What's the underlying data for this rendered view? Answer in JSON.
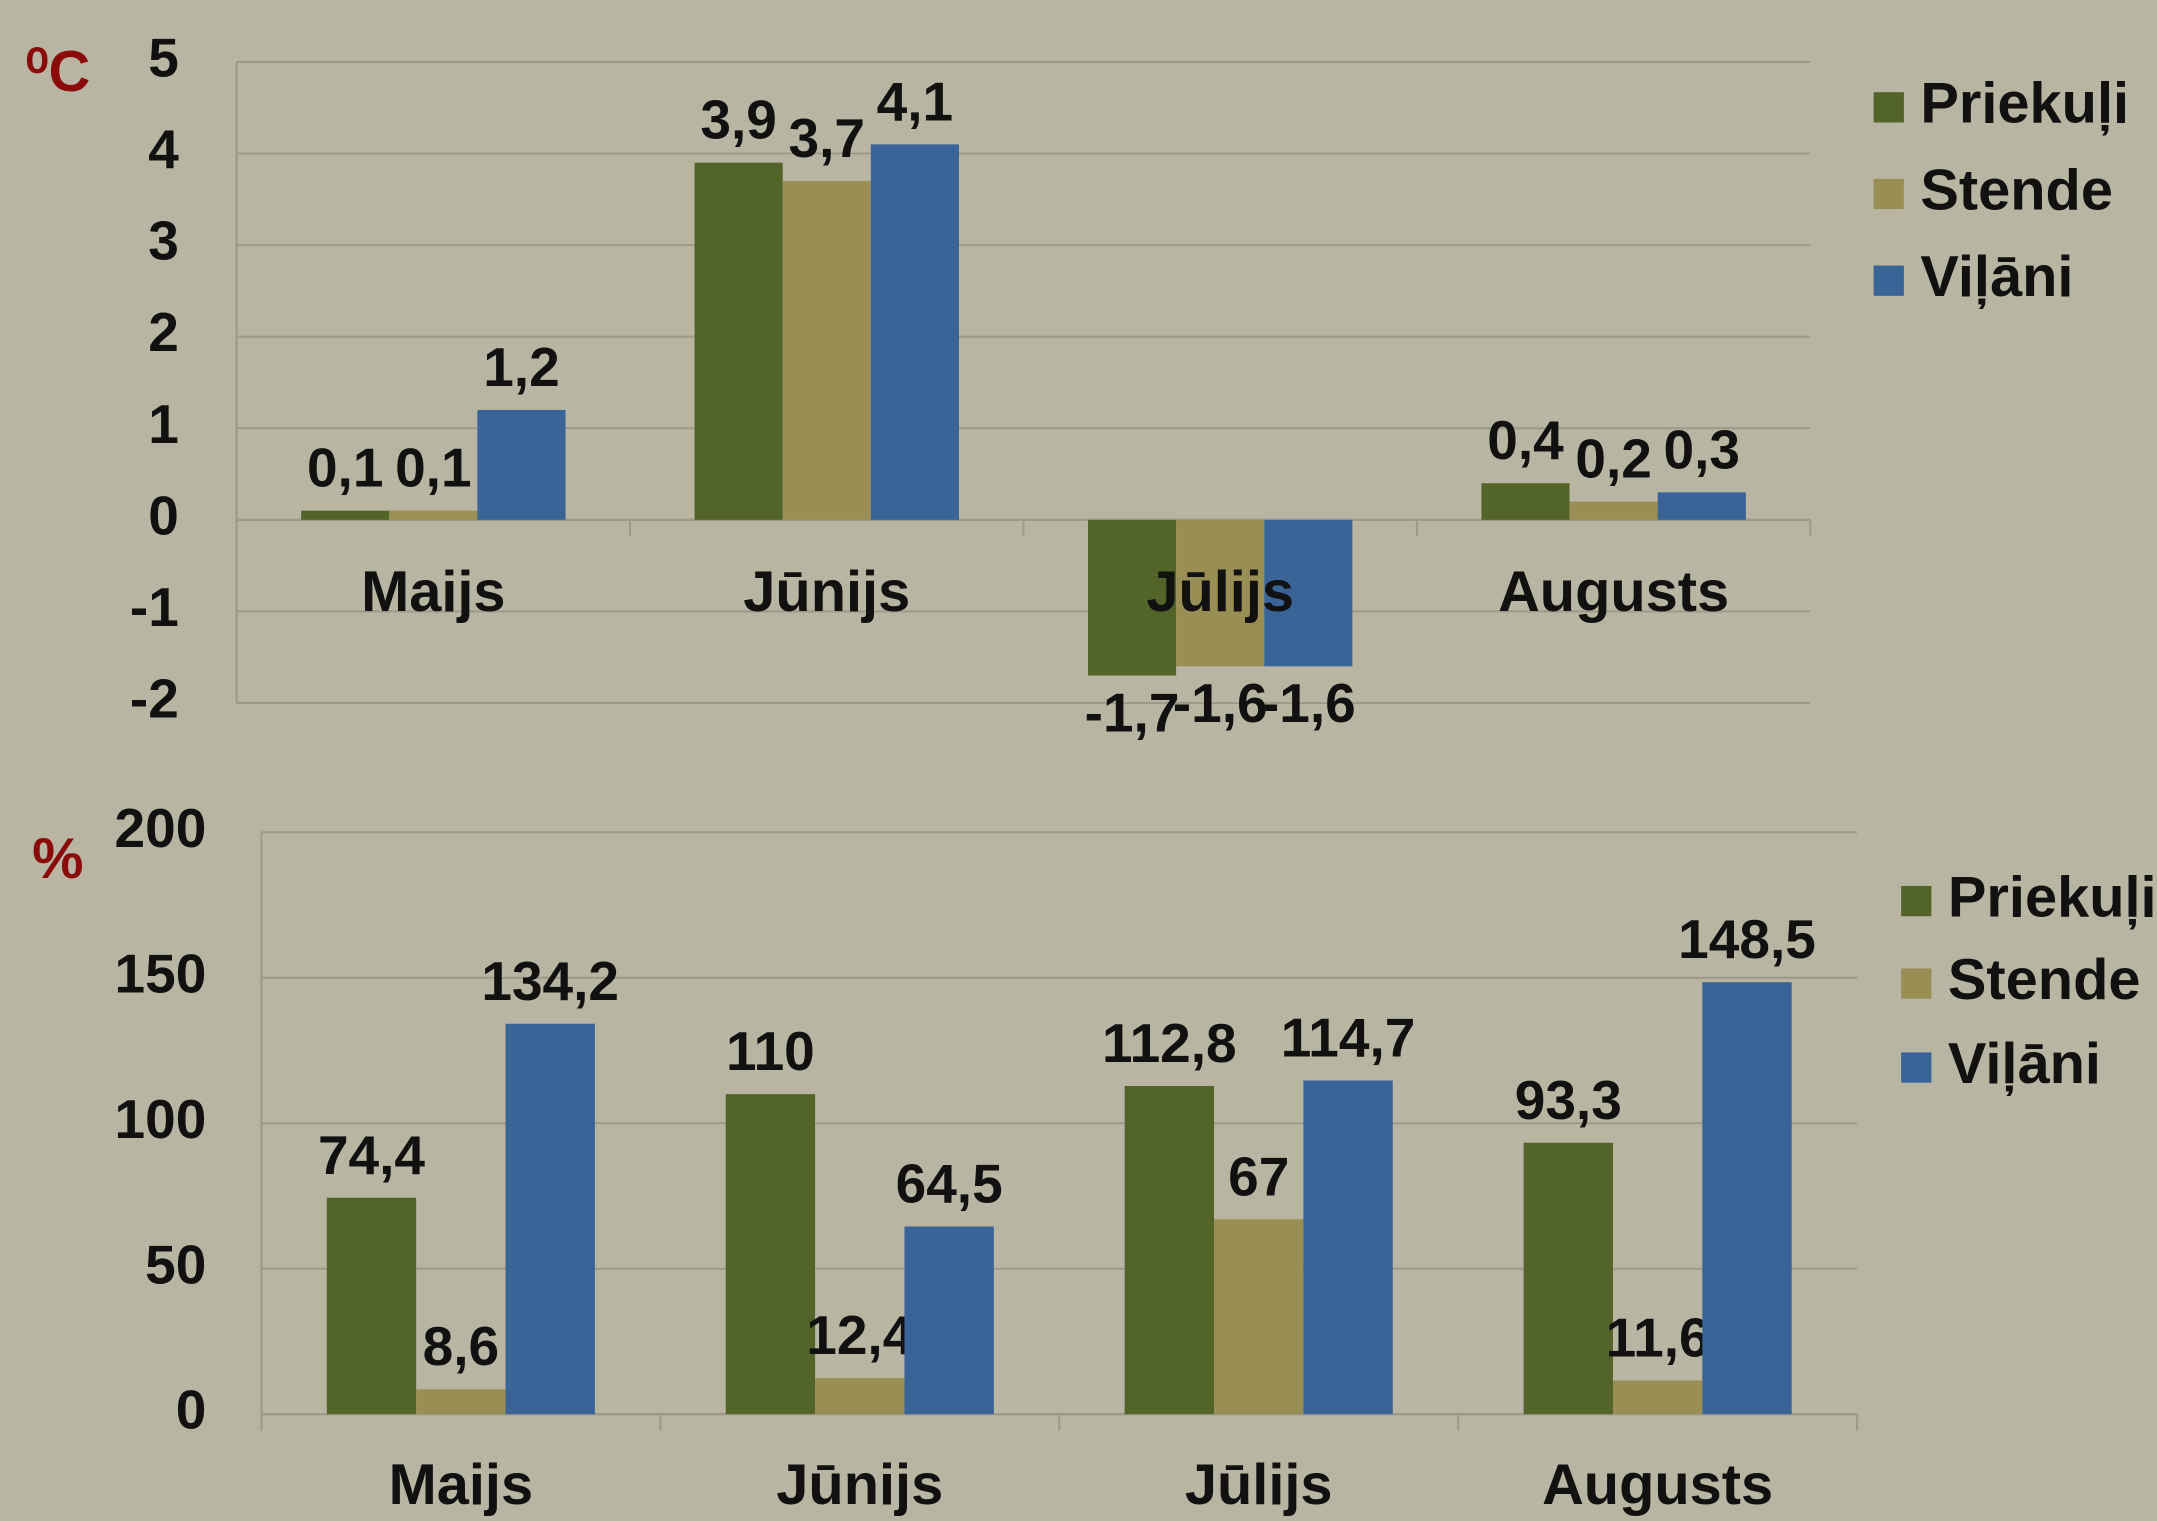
{
  "chart_data": [
    {
      "type": "bar",
      "y_label": "⁰C",
      "categories": [
        "Maijs",
        "Jūnijs",
        "Jūlijs",
        "Augusts"
      ],
      "series": [
        {
          "name": "Priekuļi",
          "color": "#526428",
          "values": [
            0.1,
            3.9,
            -1.7,
            0.4
          ],
          "value_labels": [
            "0,1",
            "3,9",
            "-1,7",
            "0,4"
          ]
        },
        {
          "name": "Stende",
          "color": "#998f55",
          "values": [
            0.1,
            3.7,
            -1.6,
            0.2
          ],
          "value_labels": [
            "0,1",
            "3,7",
            "-1,6",
            "0,2"
          ]
        },
        {
          "name": "Viļāni",
          "color": "#386497",
          "values": [
            1.2,
            4.1,
            -1.6,
            0.3
          ],
          "value_labels": [
            "1,2",
            "4,1",
            "-1,6",
            "0,3"
          ]
        }
      ],
      "ylim": [
        -2,
        5
      ],
      "yticks": [
        -2,
        -1,
        0,
        1,
        2,
        3,
        4,
        5
      ],
      "grid": true,
      "legend": "right"
    },
    {
      "type": "bar",
      "y_label": "%",
      "categories": [
        "Maijs",
        "Jūnijs",
        "Jūlijs",
        "Augusts"
      ],
      "series": [
        {
          "name": "Priekuļi",
          "color": "#526428",
          "values": [
            74.4,
            110,
            112.8,
            93.3
          ],
          "value_labels": [
            "74,4",
            "110",
            "112,8",
            "93,3"
          ]
        },
        {
          "name": "Stende",
          "color": "#998f55",
          "values": [
            8.6,
            12.4,
            67,
            11.6
          ],
          "value_labels": [
            "8,6",
            "12,4",
            "67",
            "11,6"
          ]
        },
        {
          "name": "Viļāni",
          "color": "#386497",
          "values": [
            134.2,
            64.5,
            114.7,
            148.5
          ],
          "value_labels": [
            "134,2",
            "64,5",
            "114,7",
            "148,5"
          ]
        }
      ],
      "ylim": [
        0,
        200
      ],
      "yticks": [
        0,
        50,
        100,
        150,
        200
      ],
      "grid": true,
      "legend": "right"
    }
  ]
}
